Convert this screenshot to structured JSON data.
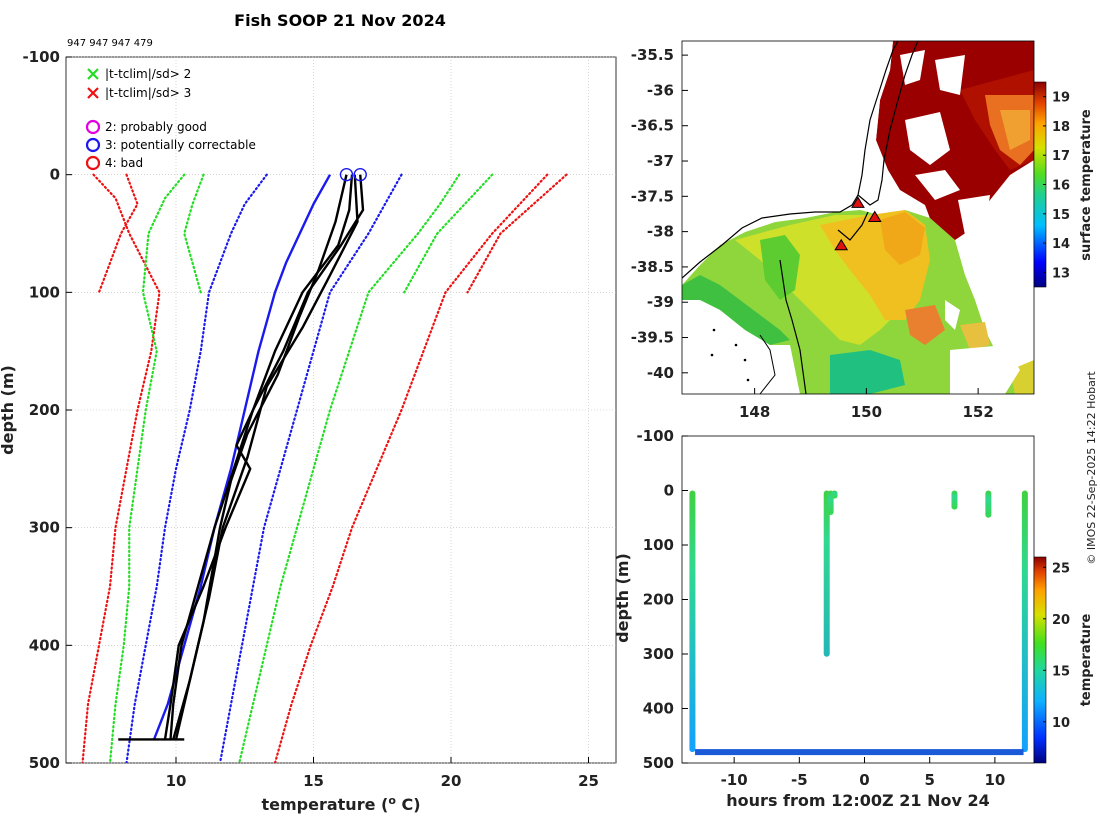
{
  "title": "Fish SOOP 21 Nov 2024",
  "ids": "947 947 947 479",
  "credit": "© IMOS 22-Sep-2025 14:22 Hobart",
  "colors": {
    "good": "#e000e0",
    "correctable": "#1a1aee",
    "bad": "#ee1111",
    "sd2": "#22dd22",
    "sd3": "#ee1111",
    "profile": "#000000",
    "grid": "#bbbbbb"
  },
  "legend": [
    {
      "marker": "x",
      "color": "#22dd22",
      "label": "|t-tclim|/sd> 2"
    },
    {
      "marker": "x",
      "color": "#ee1111",
      "label": "|t-tclim|/sd> 3"
    },
    {
      "marker": "o",
      "color": "#e000e0",
      "label": "2: probably good"
    },
    {
      "marker": "o",
      "color": "#1a1aee",
      "label": "3: potentially correctable"
    },
    {
      "marker": "o",
      "color": "#ee1111",
      "label": "4: bad"
    }
  ],
  "chart_data": [
    {
      "type": "line",
      "name": "profile",
      "xlabel": "temperature (",
      "xlabel_sup": "o",
      "xlabel_end": " C)",
      "ylabel": "depth (m)",
      "xlim": [
        6,
        26
      ],
      "ylim": [
        -100,
        500
      ],
      "xticks": [
        10,
        15,
        20,
        25
      ],
      "yticks": [
        -100,
        0,
        100,
        200,
        300,
        400,
        500
      ],
      "series": [
        {
          "name": "clim -3sd (left)",
          "style": "dotted",
          "color": "#ee1111",
          "depth": [
            0,
            20,
            50,
            100,
            150,
            200,
            300,
            350,
            400,
            450,
            500
          ],
          "temp": [
            7.0,
            7.8,
            8.3,
            9.4,
            9.1,
            8.6,
            7.8,
            7.6,
            7.2,
            6.8,
            6.6
          ]
        },
        {
          "name": "clim -2sd (left)",
          "style": "dotted",
          "color": "#22dd22",
          "depth": [
            0,
            20,
            50,
            100,
            150,
            200,
            250,
            300,
            350,
            400,
            450,
            500
          ],
          "temp": [
            10.3,
            9.6,
            9.0,
            8.8,
            9.3,
            8.9,
            8.6,
            8.3,
            8.3,
            8.1,
            7.8,
            7.6
          ]
        },
        {
          "name": "clim -1sd",
          "style": "dotted",
          "color": "#1a1aee",
          "depth": [
            0,
            25,
            50,
            100,
            150,
            200,
            250,
            300,
            350,
            400,
            450,
            500
          ],
          "temp": [
            13.3,
            12.5,
            12.0,
            11.2,
            10.9,
            10.5,
            10.0,
            9.6,
            9.3,
            8.9,
            8.5,
            8.2
          ]
        },
        {
          "name": "clim mean",
          "style": "solid",
          "color": "#1a1aee",
          "depth": [
            0,
            25,
            50,
            75,
            100,
            150,
            200,
            250,
            300,
            350,
            400,
            450,
            480
          ],
          "temp": [
            15.6,
            15.0,
            14.5,
            14.0,
            13.6,
            13.0,
            12.5,
            12.0,
            11.4,
            10.9,
            10.3,
            9.7,
            9.2
          ]
        },
        {
          "name": "clim +1sd",
          "style": "dotted",
          "color": "#1a1aee",
          "depth": [
            0,
            25,
            50,
            100,
            150,
            200,
            250,
            300,
            350,
            400,
            450,
            500
          ],
          "temp": [
            18.2,
            17.6,
            17.0,
            15.6,
            15.0,
            14.4,
            13.8,
            13.2,
            12.8,
            12.4,
            12.0,
            11.6
          ]
        },
        {
          "name": "clim +2sd (right)",
          "style": "dotted",
          "color": "#22dd22",
          "depth": [
            0,
            25,
            50,
            100,
            150,
            200,
            250,
            300,
            350,
            400,
            450,
            500
          ],
          "temp": [
            20.3,
            19.6,
            18.8,
            17.0,
            16.3,
            15.6,
            15.0,
            14.4,
            13.8,
            13.3,
            12.8,
            12.3
          ]
        },
        {
          "name": "clim +3sd (right)",
          "style": "dotted",
          "color": "#ee1111",
          "depth": [
            0,
            25,
            50,
            100,
            150,
            200,
            250,
            300,
            350,
            400,
            450,
            500
          ],
          "temp": [
            23.5,
            22.5,
            21.5,
            19.8,
            19.0,
            18.2,
            17.3,
            16.4,
            15.7,
            14.9,
            14.2,
            13.6
          ]
        },
        {
          "name": "clim +2sd b",
          "style": "dotted",
          "color": "#22dd22",
          "depth": [
            0,
            25,
            50,
            100
          ],
          "temp": [
            21.5,
            20.5,
            19.5,
            18.3
          ]
        },
        {
          "name": "clim +3sd b",
          "style": "dotted",
          "color": "#ee1111",
          "depth": [
            0,
            25,
            50,
            100
          ],
          "temp": [
            24.2,
            23.0,
            21.8,
            20.6
          ]
        },
        {
          "name": "clim -2sd b",
          "style": "dotted",
          "color": "#22dd22",
          "depth": [
            0,
            25,
            50,
            100
          ],
          "temp": [
            11.0,
            10.6,
            10.3,
            10.9
          ]
        },
        {
          "name": "clim -3sd b",
          "style": "dotted",
          "color": "#ee1111",
          "depth": [
            0,
            25,
            50,
            100
          ],
          "temp": [
            8.2,
            8.6,
            8.0,
            7.2
          ]
        },
        {
          "name": "obs 1",
          "style": "solid",
          "color": "#000000",
          "depth": [
            0,
            30,
            60,
            100,
            150,
            200,
            230,
            250,
            300,
            350,
            400,
            450,
            480
          ],
          "temp": [
            16.4,
            16.3,
            15.9,
            14.6,
            13.6,
            12.8,
            12.2,
            12.7,
            11.8,
            11.0,
            10.1,
            9.8,
            9.6
          ]
        },
        {
          "name": "obs 2",
          "style": "solid",
          "color": "#000000",
          "depth": [
            0,
            30,
            60,
            100,
            150,
            200,
            250,
            300,
            350,
            400,
            450,
            480
          ],
          "temp": [
            16.7,
            16.8,
            16.0,
            14.8,
            13.9,
            12.8,
            12.1,
            11.4,
            10.8,
            10.2,
            9.9,
            9.8
          ]
        },
        {
          "name": "obs 3",
          "style": "solid",
          "color": "#000000",
          "depth": [
            0,
            40,
            80,
            120,
            170,
            220,
            260,
            300,
            340,
            380,
            430,
            480
          ],
          "temp": [
            16.2,
            15.8,
            15.2,
            14.5,
            13.7,
            12.6,
            12.0,
            11.6,
            11.3,
            11.0,
            10.5,
            9.9
          ]
        },
        {
          "name": "obs 4",
          "style": "solid",
          "color": "#000000",
          "depth": [
            0,
            40,
            90,
            130,
            180,
            240,
            300,
            360,
            420,
            480
          ],
          "temp": [
            16.5,
            16.6,
            15.5,
            14.6,
            13.3,
            12.6,
            11.7,
            11.2,
            10.6,
            10.0
          ]
        }
      ],
      "flags": [
        {
          "depth": 0,
          "temp": 16.2,
          "flag": 3
        },
        {
          "depth": 0,
          "temp": 16.7,
          "flag": 3
        }
      ],
      "floor_depth": 480,
      "floor_temp_range": [
        7.9,
        10.3
      ]
    },
    {
      "type": "heatmap",
      "name": "surface temperature map",
      "xlim": [
        146.7,
        153.0
      ],
      "ylim": [
        -40.3,
        -35.3
      ],
      "xticks": [
        148,
        150,
        152
      ],
      "yticks": [
        -35.5,
        -36,
        -36.5,
        -37,
        -37.5,
        -38,
        -38.5,
        -39,
        -39.5,
        -40
      ],
      "ytick_labels": [
        "-35.5",
        "-36",
        "-36.5",
        "-37",
        "-37.5",
        "-38",
        "-38.5",
        "-39",
        "-39.5",
        "-40"
      ],
      "colorbar": {
        "label": "surface temperature",
        "range": [
          12.5,
          19.5
        ],
        "ticks": [
          13,
          14,
          15,
          16,
          17,
          18,
          19
        ]
      },
      "stations": [
        {
          "lon": 149.85,
          "lat": -37.6
        },
        {
          "lon": 150.15,
          "lat": -37.8
        },
        {
          "lon": 149.55,
          "lat": -38.2
        }
      ]
    },
    {
      "type": "scatter",
      "name": "depth vs time",
      "xlabel": "hours from 12:00Z 21 Nov 24",
      "ylabel": "depth (m)",
      "xlim": [
        -14,
        13
      ],
      "ylim": [
        -100,
        500
      ],
      "xticks": [
        -10,
        -5,
        0,
        5,
        10
      ],
      "yticks": [
        -100,
        0,
        100,
        200,
        300,
        400,
        500
      ],
      "colorbar": {
        "label": "temperature",
        "range": [
          6,
          26
        ],
        "ticks": [
          10,
          15,
          20,
          25
        ]
      },
      "casts": [
        {
          "hour": -13.2,
          "max_depth": 480
        },
        {
          "hour": -2.9,
          "max_depth": 305
        },
        {
          "hour": -2.6,
          "max_depth": 45
        },
        {
          "hour": -2.3,
          "max_depth": 15
        },
        {
          "hour": 6.9,
          "max_depth": 35
        },
        {
          "hour": 9.5,
          "max_depth": 50
        },
        {
          "hour": 12.3,
          "max_depth": 480
        }
      ],
      "bottom_track": {
        "depth": 480,
        "hour_range": [
          -13.0,
          12.2
        ]
      }
    }
  ]
}
